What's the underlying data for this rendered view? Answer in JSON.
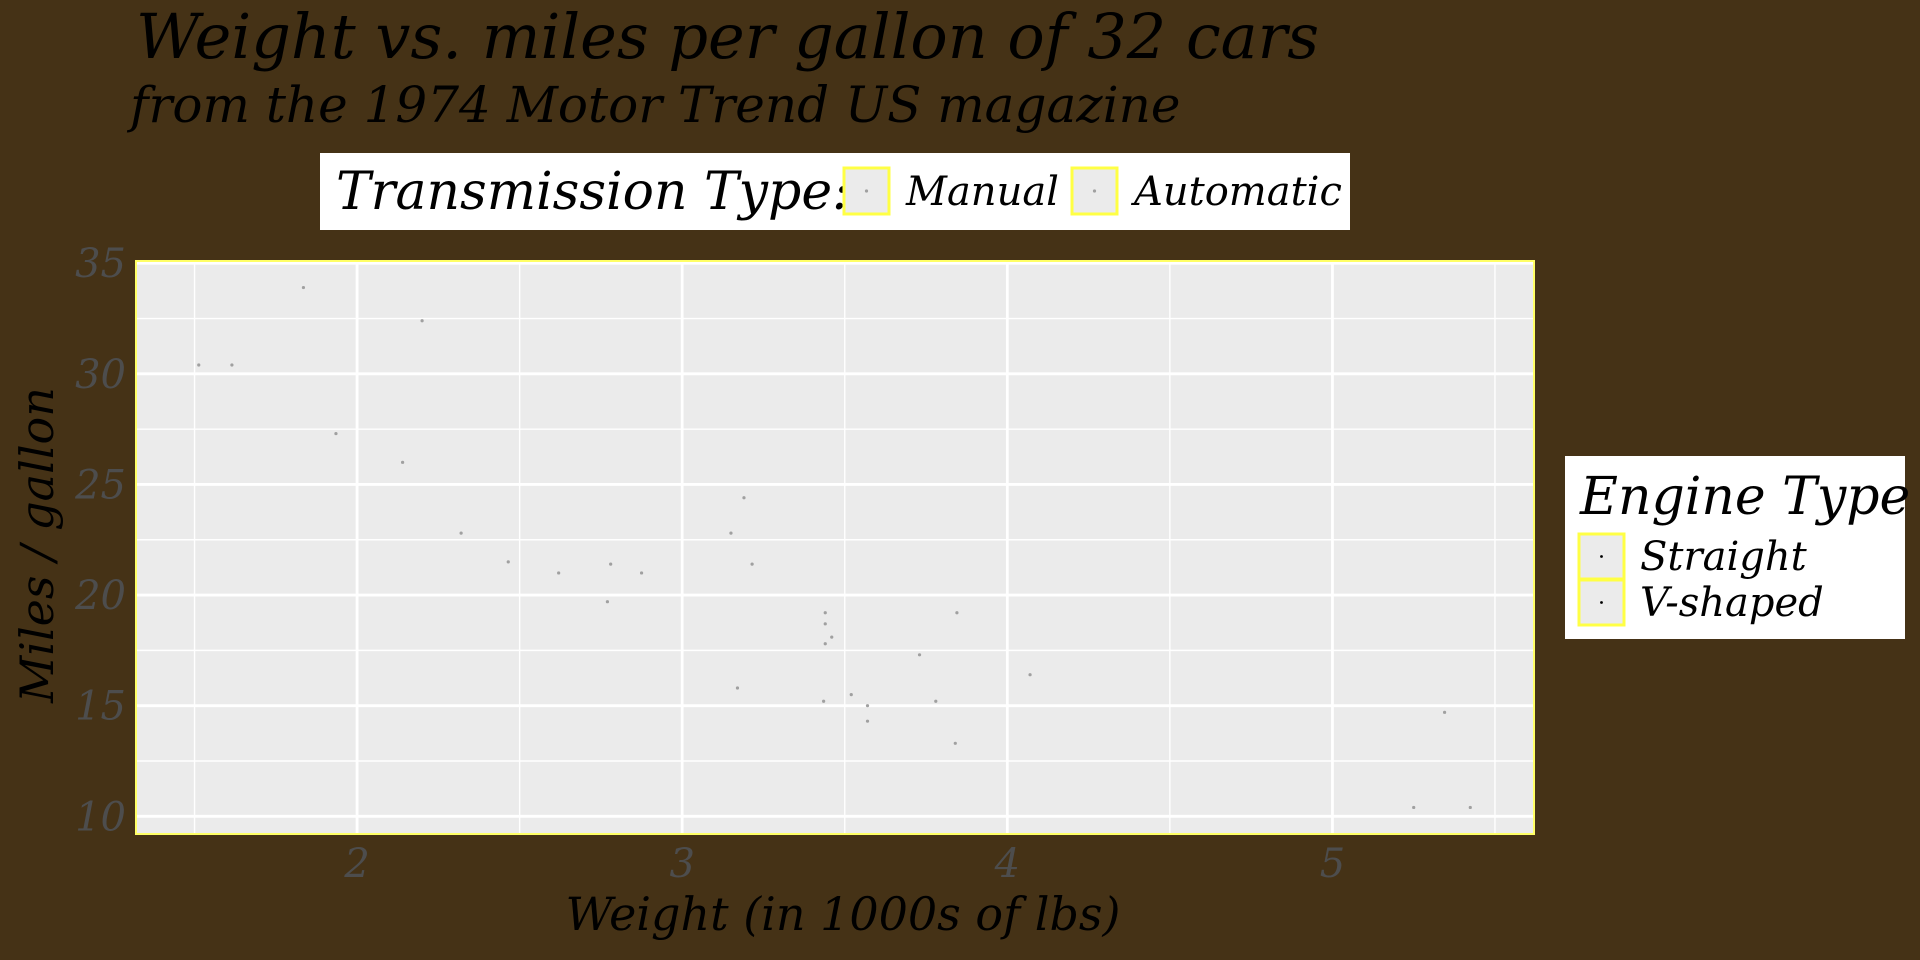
{
  "colors": {
    "page_background": "#453216",
    "panel_background": "#ebebeb",
    "panel_border": "#ffff66",
    "grid": "#ffffff",
    "legend_background": "#ffffff",
    "legend_key_border": "#ffff44",
    "point_manual": "#a0a0a0",
    "point_automatic": "#a0a0a0",
    "tick_label": "#4d4d4d"
  },
  "chart_data": {
    "type": "scatter",
    "title": "Weight vs. miles per gallon of 32 cars",
    "subtitle": "from the 1974 Motor Trend US magazine",
    "xlabel": "Weight (in 1000s of lbs)",
    "ylabel": "Miles / gallon",
    "xlim": [
      1.32,
      5.62
    ],
    "ylim": [
      9.2,
      35.1
    ],
    "xticks": [
      2,
      3,
      4,
      5
    ],
    "yticks": [
      10,
      15,
      20,
      25,
      30,
      35
    ],
    "grid": true,
    "legends": [
      {
        "title": "Transmission Type:",
        "placement": "top",
        "entries": [
          "Manual",
          "Automatic"
        ]
      },
      {
        "title": "Engine Type",
        "placement": "right",
        "entries": [
          "Straight",
          "V-shaped"
        ]
      }
    ],
    "series": [
      {
        "name": "Manual",
        "points": [
          [
            2.62,
            21.0
          ],
          [
            2.875,
            21.0
          ],
          [
            2.32,
            22.8
          ],
          [
            2.2,
            32.4
          ],
          [
            1.615,
            30.4
          ],
          [
            1.835,
            33.9
          ],
          [
            1.935,
            27.3
          ],
          [
            2.14,
            26.0
          ],
          [
            1.513,
            30.4
          ],
          [
            3.17,
            15.8
          ],
          [
            2.77,
            19.7
          ],
          [
            3.57,
            15.0
          ],
          [
            2.78,
            21.4
          ]
        ]
      },
      {
        "name": "Automatic",
        "points": [
          [
            3.215,
            21.4
          ],
          [
            3.44,
            18.7
          ],
          [
            3.46,
            18.1
          ],
          [
            3.57,
            14.3
          ],
          [
            3.19,
            24.4
          ],
          [
            3.15,
            22.8
          ],
          [
            3.44,
            19.2
          ],
          [
            3.44,
            17.8
          ],
          [
            4.07,
            16.4
          ],
          [
            3.73,
            17.3
          ],
          [
            3.78,
            15.2
          ],
          [
            5.25,
            10.4
          ],
          [
            5.424,
            10.4
          ],
          [
            5.345,
            14.7
          ],
          [
            2.465,
            21.5
          ],
          [
            3.52,
            15.5
          ],
          [
            3.435,
            15.2
          ],
          [
            3.84,
            13.3
          ],
          [
            3.845,
            19.2
          ]
        ]
      }
    ]
  }
}
